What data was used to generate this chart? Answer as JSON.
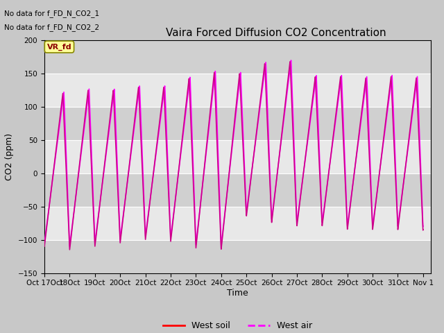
{
  "title": "Vaira Forced Diffusion CO2 Concentration",
  "xlabel": "Time",
  "ylabel": "CO2 (ppm)",
  "ylim": [
    -150,
    200
  ],
  "yticks": [
    -150,
    -100,
    -50,
    0,
    50,
    100,
    150,
    200
  ],
  "annotation_line1": "No data for f_FD_N_CO2_1",
  "annotation_line2": "No data for f_FD_N_CO2_2",
  "vr_fd_label": "VR_fd",
  "legend_entries": [
    "West soil",
    "West air"
  ],
  "legend_colors": [
    "#ff0000",
    "#ff00ff"
  ],
  "line_color_soil": "#cc0088",
  "line_color_air": "#ff00ff",
  "background_color": "#c8c8c8",
  "plot_bg_color": "#e8e8e8",
  "band_color_light": "#d8d8d8",
  "band_color_dark": "#c8c8c8",
  "figsize": [
    6.4,
    4.8
  ],
  "dpi": 100
}
